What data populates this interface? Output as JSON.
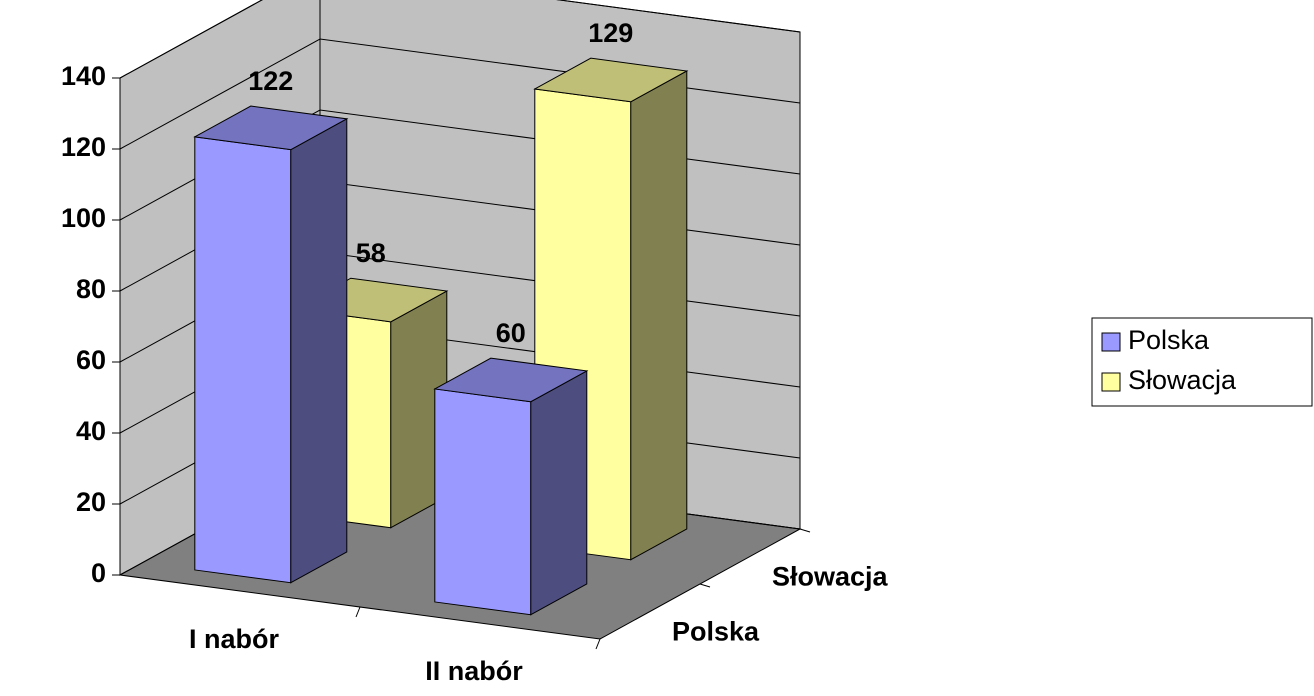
{
  "chart_data": {
    "type": "bar3d",
    "categories": [
      "I nabór",
      "II nabór"
    ],
    "series": [
      {
        "name": "Polska",
        "color": "#9999ff",
        "values": [
          122,
          60
        ]
      },
      {
        "name": "Słowacja",
        "color": "#ffffa0",
        "values": [
          58,
          129
        ]
      }
    ],
    "ylim": [
      0,
      140
    ],
    "yticks": [
      0,
      20,
      40,
      60,
      80,
      100,
      120,
      140
    ],
    "grid": true,
    "legend": "right"
  }
}
